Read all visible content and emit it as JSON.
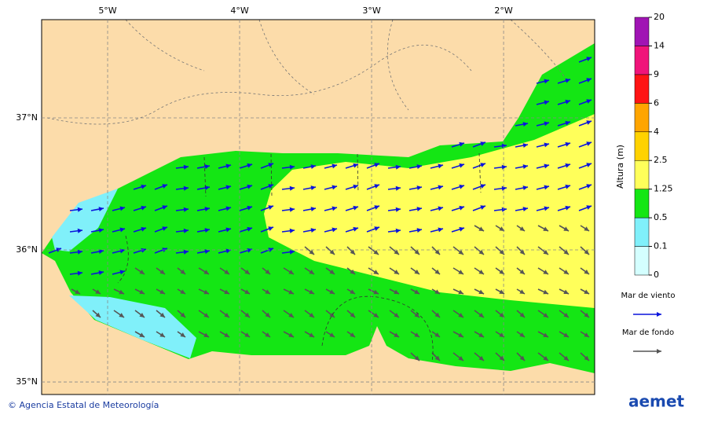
{
  "map": {
    "lonlim": [
      -5.5,
      -1.31
    ],
    "latlim": [
      34.905,
      37.744
    ],
    "lonticks": [
      {
        "value": -5,
        "label": "5°W"
      },
      {
        "value": -4,
        "label": "4°W"
      },
      {
        "value": -3,
        "label": "3°W"
      },
      {
        "value": -2,
        "label": "2°W"
      }
    ],
    "latticks": [
      {
        "value": 37,
        "label": "37°N"
      },
      {
        "value": 36,
        "label": "36°N"
      },
      {
        "value": 35,
        "label": "35°N"
      }
    ],
    "land_color": "#fcdcaa",
    "colorbar": {
      "title": "Altura (m)",
      "ticks": [
        0,
        0.1,
        0.5,
        1.25,
        2.5,
        4,
        6,
        9,
        14,
        20
      ],
      "colors": [
        "#d4ffff",
        "#80f0fa",
        "#14e614",
        "#ffff5a",
        "#ffd200",
        "#ffa500",
        "#ff1414",
        "#f0147a",
        "#a014b4"
      ]
    },
    "legend": [
      {
        "name": "Mar de viento",
        "color": "#0a14dc"
      },
      {
        "name": "Mar de fondo",
        "color": "#555555"
      }
    ],
    "footer": "© Agencia Estatal de Meteorología",
    "logo": "aemet"
  }
}
